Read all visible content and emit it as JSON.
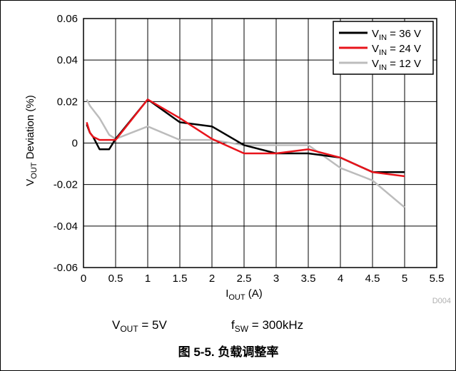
{
  "chart_data": {
    "type": "line",
    "xlabel": "I_OUT (A)",
    "ylabel": "V_OUT Deviation (%)",
    "xlim": [
      0,
      5.5
    ],
    "ylim": [
      -0.06,
      0.06
    ],
    "xticks": [
      "0",
      "0.5",
      "1",
      "1.5",
      "2",
      "2.5",
      "3",
      "3.5",
      "4",
      "4.5",
      "5",
      "5.5"
    ],
    "yticks": [
      "0.06",
      "0.04",
      "0.02",
      "0",
      "-0.02",
      "-0.04",
      "-0.06"
    ],
    "grid": true,
    "legend_position": "top-right",
    "series": [
      {
        "name": "V_IN = 36 V",
        "legend_main": "V",
        "legend_sub": "IN",
        "legend_rest": " = 36 V",
        "color": "#000000",
        "x": [
          0.05,
          0.1,
          0.15,
          0.25,
          0.4,
          0.5,
          1.0,
          1.5,
          2.0,
          2.5,
          3.0,
          3.5,
          4.0,
          4.5,
          5.0
        ],
        "y": [
          0.009,
          0.005,
          0.003,
          -0.003,
          -0.003,
          0.002,
          0.021,
          0.01,
          0.008,
          -0.001,
          -0.005,
          -0.005,
          -0.007,
          -0.014,
          -0.014
        ]
      },
      {
        "name": "V_IN = 24 V",
        "legend_main": "V",
        "legend_sub": "IN",
        "legend_rest": " = 24 V",
        "color": "#e8141b",
        "x": [
          0.05,
          0.1,
          0.15,
          0.25,
          0.4,
          0.5,
          1.0,
          1.5,
          2.0,
          2.5,
          3.0,
          3.5,
          4.0,
          4.5,
          5.0
        ],
        "y": [
          0.01,
          0.005,
          0.003,
          0.0015,
          0.0015,
          0.0015,
          0.021,
          0.012,
          0.002,
          -0.005,
          -0.005,
          -0.003,
          -0.007,
          -0.014,
          -0.016
        ]
      },
      {
        "name": "V_IN = 12 V",
        "legend_main": "V",
        "legend_sub": "IN",
        "legend_rest": " = 12 V",
        "color": "#bcbcbc",
        "x": [
          0.05,
          0.1,
          0.15,
          0.25,
          0.4,
          0.5,
          1.0,
          1.5,
          2.0,
          2.5,
          3.0,
          3.5,
          4.0,
          4.5,
          5.0
        ],
        "y": [
          0.021,
          0.018,
          0.016,
          0.012,
          0.004,
          0.002,
          0.008,
          0.0015,
          0.0015,
          -0.001,
          -0.001,
          -0.001,
          -0.012,
          -0.018,
          -0.031
        ]
      }
    ]
  },
  "axis": {
    "ylabel_main": "V",
    "ylabel_sub": "OUT",
    "ylabel_rest": " Deviation (%)",
    "xlabel_main": "I",
    "xlabel_sub": "OUT",
    "xlabel_rest": " (A)"
  },
  "figure_id": "D004",
  "conditions": {
    "vout_main": "V",
    "vout_sub": "OUT",
    "vout_rest": " = 5V",
    "fsw_main": "f",
    "fsw_sub": "SW",
    "fsw_rest": " = 300kHz"
  },
  "caption": "图 5-5. 负载调整率"
}
